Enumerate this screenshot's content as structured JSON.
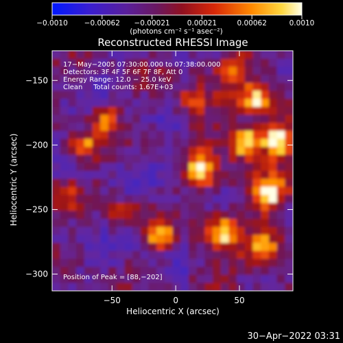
{
  "colorbar": {
    "tick_labels": [
      "−0.0010",
      "−0.00062",
      "−0.00021",
      "0.00021",
      "0.00062",
      "0.0010"
    ],
    "unit_label": "(photons cm⁻² s⁻¹ asec⁻²)",
    "range": [
      -0.001,
      0.001
    ],
    "colors": [
      "#0018ff",
      "#4020c0",
      "#602090",
      "#801050",
      "#c01010",
      "#ff5000",
      "#ffb000",
      "#ffffe0"
    ]
  },
  "chart_data": {
    "type": "heatmap",
    "title": "Reconstructed RHESSI Image",
    "xlabel": "Heliocentric X (arcsec)",
    "ylabel": "Heliocentric Y (arcsec)",
    "xlim": [
      -97,
      92
    ],
    "ylim": [
      -313,
      -127
    ],
    "x_ticks": [
      -50,
      0,
      50
    ],
    "x_tick_labels": [
      "−50",
      "0",
      "50"
    ],
    "y_ticks": [
      -150,
      -200,
      -250,
      -300
    ],
    "y_tick_labels": [
      "−150",
      "−200",
      "−250",
      "−300"
    ],
    "annotations": {
      "line1": "17−May−2005 07:30:00.000 to 07:38:00.000",
      "line2": "Detectors: 3F 4F 5F 6F 7F 8F, Att 0",
      "line3": "Energy Range: 12.0 − 25.0 keV",
      "line4": "Clean     Total counts: 1.67E+03",
      "peak": "Position of Peak = [88,−202]"
    }
  },
  "footer": {
    "timestamp": "30−Apr−2022 03:31"
  }
}
